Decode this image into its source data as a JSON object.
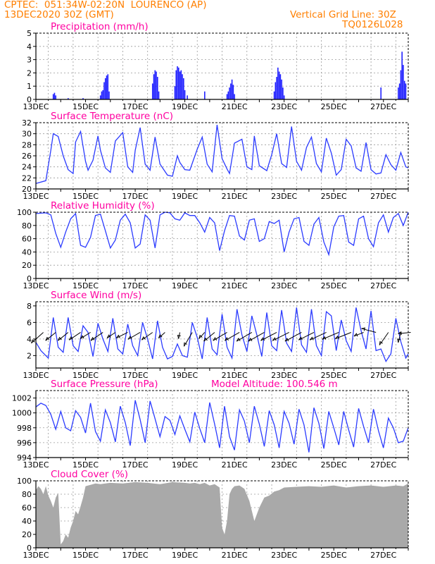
{
  "header": {
    "line1": "CPTEC:  051:34W-02:20N  LOURENCO (AP)",
    "line2": "13DEC2020 30Z (GMT)",
    "grid_note": "Vertical Grid Line: 30Z",
    "run_id": "TQ0126L028"
  },
  "colors": {
    "header": "#ff7f00",
    "title": "#ff00a0",
    "line": "#2b3bff",
    "bar": "#2020ff",
    "cloud": "#a9a9a9"
  },
  "chart_data": [
    {
      "id": "precip",
      "type": "bar",
      "title": "Precipitation (mm/h)",
      "ylim": [
        0,
        5
      ],
      "yticks": [
        0,
        1,
        2,
        3,
        4,
        5
      ],
      "x_start_day": 13,
      "x_end_day": 28,
      "xtick_labels": [
        "13DEC",
        "15DEC",
        "17DEC",
        "19DEC",
        "21DEC",
        "23DEC",
        "25DEC",
        "27DEC"
      ],
      "grid": true,
      "values": [
        [
          13.7,
          0.4
        ],
        [
          13.75,
          0.5
        ],
        [
          13.8,
          0.3
        ],
        [
          14.3,
          0.1
        ],
        [
          14.9,
          0.1
        ],
        [
          15.6,
          0.3
        ],
        [
          15.65,
          0.6
        ],
        [
          15.7,
          0.7
        ],
        [
          15.75,
          1.3
        ],
        [
          15.8,
          1.6
        ],
        [
          15.85,
          1.8
        ],
        [
          15.9,
          1.9
        ],
        [
          15.95,
          0.6
        ],
        [
          17.7,
          1.2
        ],
        [
          17.75,
          1.9
        ],
        [
          17.8,
          2.2
        ],
        [
          17.85,
          2.1
        ],
        [
          17.9,
          1.7
        ],
        [
          17.95,
          0.6
        ],
        [
          18.6,
          1.0
        ],
        [
          18.65,
          2.2
        ],
        [
          18.7,
          2.5
        ],
        [
          18.75,
          2.4
        ],
        [
          18.8,
          2.1
        ],
        [
          18.85,
          2.2
        ],
        [
          18.9,
          1.9
        ],
        [
          18.95,
          1.6
        ],
        [
          19.0,
          0.7
        ],
        [
          19.1,
          0.3
        ],
        [
          19.8,
          0.6
        ],
        [
          20.7,
          0.4
        ],
        [
          20.75,
          0.6
        ],
        [
          20.8,
          0.9
        ],
        [
          20.85,
          1.2
        ],
        [
          20.9,
          1.5
        ],
        [
          20.95,
          1.1
        ],
        [
          21.0,
          0.4
        ],
        [
          22.6,
          0.6
        ],
        [
          22.65,
          1.3
        ],
        [
          22.7,
          1.7
        ],
        [
          22.75,
          2.4
        ],
        [
          22.8,
          2.1
        ],
        [
          22.85,
          1.9
        ],
        [
          22.9,
          1.5
        ],
        [
          22.95,
          0.9
        ],
        [
          23.0,
          0.3
        ],
        [
          26.9,
          0.9
        ],
        [
          27.6,
          0.9
        ],
        [
          27.65,
          1.2
        ],
        [
          27.7,
          2.2
        ],
        [
          27.75,
          3.6
        ],
        [
          27.8,
          2.6
        ],
        [
          27.85,
          1.4
        ],
        [
          27.9,
          1.2
        ]
      ]
    },
    {
      "id": "temp",
      "type": "line",
      "title": "Surface Temperature (nC)",
      "ylim": [
        20,
        32
      ],
      "yticks": [
        20,
        22,
        24,
        26,
        28,
        30,
        32
      ],
      "x_start_day": 13,
      "x_end_day": 28,
      "xtick_labels": [
        "13DEC",
        "15DEC",
        "17DEC",
        "19DEC",
        "21DEC",
        "23DEC",
        "25DEC",
        "27DEC"
      ],
      "grid": true,
      "x": [
        13.0,
        13.4,
        13.6,
        13.7,
        13.9,
        14.1,
        14.3,
        14.5,
        14.6,
        14.8,
        15.0,
        15.1,
        15.3,
        15.5,
        15.6,
        15.8,
        16.0,
        16.2,
        16.5,
        16.7,
        16.9,
        17.0,
        17.2,
        17.4,
        17.6,
        17.8,
        18.0,
        18.3,
        18.5,
        18.7,
        18.8,
        19.0,
        19.2,
        19.5,
        19.7,
        19.9,
        20.1,
        20.3,
        20.5,
        20.7,
        20.8,
        21.0,
        21.3,
        21.5,
        21.7,
        21.8,
        22.0,
        22.3,
        22.5,
        22.7,
        22.9,
        23.1,
        23.3,
        23.5,
        23.7,
        23.9,
        24.1,
        24.3,
        24.5,
        24.7,
        24.9,
        25.1,
        25.3,
        25.5,
        25.7,
        25.9,
        26.1,
        26.3,
        26.5,
        26.7,
        26.9,
        27.1,
        27.3,
        27.5,
        27.7,
        27.9,
        28.0
      ],
      "values": [
        21.0,
        21.5,
        27.0,
        30.0,
        29.5,
        26.0,
        23.5,
        22.8,
        28.5,
        30.4,
        25.0,
        23.4,
        25.2,
        29.6,
        27.0,
        23.8,
        23.0,
        28.7,
        30.2,
        24.0,
        23.0,
        27.0,
        31.1,
        24.5,
        23.4,
        29.4,
        24.5,
        22.5,
        22.3,
        26.0,
        24.8,
        23.5,
        23.4,
        27.2,
        29.4,
        24.5,
        23.1,
        31.6,
        25.5,
        23.6,
        22.8,
        28.3,
        29.0,
        24.0,
        23.5,
        29.6,
        24.2,
        23.3,
        26.2,
        30.0,
        24.6,
        23.9,
        31.3,
        25.0,
        23.4,
        27.5,
        29.4,
        24.6,
        23.1,
        29.2,
        26.5,
        22.5,
        23.5,
        29.0,
        27.8,
        23.8,
        23.2,
        28.4,
        23.5,
        22.7,
        22.9,
        26.2,
        24.4,
        23.4,
        26.6,
        24.0,
        23.8
      ]
    },
    {
      "id": "rh",
      "type": "line",
      "title": "Relative Humidity (%)",
      "ylim": [
        0,
        100
      ],
      "yticks": [
        0,
        20,
        40,
        60,
        80,
        100
      ],
      "x_start_day": 13,
      "x_end_day": 28,
      "xtick_labels": [
        "13DEC",
        "15DEC",
        "17DEC",
        "19DEC",
        "21DEC",
        "23DEC",
        "25DEC",
        "27DEC"
      ],
      "grid": true,
      "x": [
        13.0,
        13.4,
        13.6,
        13.8,
        14.0,
        14.2,
        14.4,
        14.6,
        14.8,
        15.0,
        15.2,
        15.4,
        15.6,
        15.8,
        16.0,
        16.2,
        16.4,
        16.6,
        16.8,
        17.0,
        17.2,
        17.4,
        17.6,
        17.8,
        18.0,
        18.2,
        18.4,
        18.6,
        18.8,
        19.0,
        19.2,
        19.4,
        19.6,
        19.8,
        20.0,
        20.2,
        20.4,
        20.6,
        20.8,
        21.0,
        21.2,
        21.4,
        21.6,
        21.8,
        22.0,
        22.2,
        22.4,
        22.6,
        22.8,
        23.0,
        23.2,
        23.4,
        23.6,
        23.8,
        24.0,
        24.2,
        24.4,
        24.6,
        24.8,
        25.0,
        25.2,
        25.4,
        25.6,
        25.8,
        26.0,
        26.2,
        26.4,
        26.6,
        26.8,
        27.0,
        27.2,
        27.4,
        27.6,
        27.8,
        28.0
      ],
      "values": [
        98,
        99,
        96,
        68,
        47,
        70,
        90,
        98,
        50,
        47,
        62,
        95,
        97,
        72,
        46,
        58,
        88,
        97,
        84,
        46,
        52,
        96,
        88,
        46,
        96,
        100,
        99,
        90,
        88,
        99,
        95,
        95,
        84,
        70,
        92,
        84,
        42,
        72,
        95,
        94,
        64,
        58,
        88,
        90,
        56,
        60,
        86,
        83,
        88,
        40,
        70,
        90,
        92,
        56,
        50,
        82,
        92,
        55,
        36,
        78,
        94,
        95,
        55,
        50,
        90,
        94,
        60,
        48,
        84,
        96,
        70,
        92,
        98,
        80,
        100
      ]
    },
    {
      "id": "wind",
      "type": "line",
      "title": "Surface Wind (m/s)",
      "ylim": [
        0.5,
        8.5
      ],
      "yticks": [
        2,
        4,
        6,
        8
      ],
      "x_start_day": 13,
      "x_end_day": 28,
      "xtick_labels": [
        "13DEC",
        "15DEC",
        "17DEC",
        "19DEC",
        "21DEC",
        "23DEC",
        "25DEC",
        "27DEC"
      ],
      "grid": true,
      "x": [
        13.0,
        13.2,
        13.5,
        13.7,
        13.9,
        14.1,
        14.3,
        14.5,
        14.7,
        14.9,
        15.1,
        15.3,
        15.5,
        15.7,
        15.9,
        16.1,
        16.3,
        16.5,
        16.7,
        16.9,
        17.1,
        17.3,
        17.5,
        17.7,
        17.9,
        18.1,
        18.3,
        18.5,
        18.7,
        18.9,
        19.1,
        19.3,
        19.5,
        19.7,
        19.9,
        20.1,
        20.3,
        20.5,
        20.7,
        20.9,
        21.1,
        21.3,
        21.5,
        21.7,
        21.9,
        22.1,
        22.3,
        22.5,
        22.7,
        22.9,
        23.1,
        23.3,
        23.5,
        23.7,
        23.9,
        24.1,
        24.3,
        24.5,
        24.7,
        24.9,
        25.1,
        25.3,
        25.5,
        25.7,
        25.9,
        26.1,
        26.3,
        26.5,
        26.7,
        26.9,
        27.1,
        27.3,
        27.5,
        27.7,
        27.9,
        28.0
      ],
      "values": [
        3.6,
        2.6,
        1.7,
        6.6,
        3.0,
        2.4,
        6.6,
        3.2,
        2.5,
        5.6,
        4.8,
        1.9,
        5.9,
        4.0,
        2.5,
        6.5,
        2.8,
        2.2,
        5.8,
        3.2,
        2.0,
        6.0,
        4.0,
        1.6,
        6.2,
        3.0,
        1.6,
        1.9,
        3.4,
        2.0,
        1.8,
        6.0,
        4.2,
        1.6,
        6.6,
        2.8,
        2.1,
        7.0,
        3.0,
        1.7,
        7.6,
        4.5,
        2.5,
        6.8,
        4.5,
        1.9,
        7.2,
        3.2,
        2.6,
        7.5,
        3.5,
        2.5,
        7.8,
        3.3,
        2.4,
        7.6,
        3.2,
        2.0,
        7.3,
        6.8,
        2.6,
        6.3,
        3.8,
        2.5,
        7.8,
        5.0,
        2.8,
        7.4,
        2.6,
        2.8,
        1.3,
        2.2,
        6.5,
        3.7,
        1.7,
        2.2
      ],
      "barbs": [
        [
          13.3,
          4.8,
          -1.9,
          -1.7
        ],
        [
          13.8,
          4.8,
          -1.6,
          -1.3
        ],
        [
          14.3,
          4.8,
          -1.6,
          -1.3
        ],
        [
          14.8,
          4.8,
          -1.8,
          -1.2
        ],
        [
          15.2,
          4.8,
          -1.6,
          -1.0
        ],
        [
          15.7,
          4.8,
          -1.9,
          -1.3
        ],
        [
          16.2,
          4.8,
          -1.3,
          -0.9
        ],
        [
          16.7,
          4.8,
          -1.8,
          -0.9
        ],
        [
          17.2,
          4.8,
          -1.9,
          -1.1
        ],
        [
          17.7,
          4.8,
          -1.7,
          -1.2
        ],
        [
          18.2,
          4.8,
          -1.0,
          -0.9
        ],
        [
          18.8,
          4.8,
          -0.2,
          -1.0
        ],
        [
          19.3,
          4.8,
          -1.3,
          -2.2
        ],
        [
          19.8,
          4.8,
          -0.9,
          -1.0
        ],
        [
          20.2,
          4.8,
          -1.7,
          -1.4
        ],
        [
          20.7,
          4.8,
          -2.2,
          -1.3
        ],
        [
          21.2,
          4.8,
          -2.3,
          -1.3
        ],
        [
          21.7,
          4.8,
          -2.4,
          -1.4
        ],
        [
          22.2,
          4.8,
          -2.5,
          -1.4
        ],
        [
          22.7,
          4.8,
          -2.5,
          -1.3
        ],
        [
          23.2,
          4.8,
          -2.6,
          -1.3
        ],
        [
          23.7,
          4.8,
          -2.6,
          -1.4
        ],
        [
          24.2,
          4.8,
          -2.4,
          -1.2
        ],
        [
          24.7,
          4.8,
          -2.6,
          -1.2
        ],
        [
          25.2,
          4.8,
          -2.6,
          -1.1
        ],
        [
          25.7,
          4.8,
          -2.5,
          -1.0
        ],
        [
          26.2,
          4.8,
          -1.5,
          -0.6
        ],
        [
          26.7,
          4.8,
          -2.3,
          0.6
        ],
        [
          27.2,
          4.8,
          -1.4,
          -2.0
        ],
        [
          27.7,
          4.8,
          -0.4,
          -1.6
        ],
        [
          28.1,
          4.8,
          -2.0,
          -0.2
        ]
      ]
    },
    {
      "id": "pressure",
      "type": "line",
      "title": "Surface Pressure (hPa)",
      "annotation": "Model Altitude: 100.546 m",
      "ylim": [
        994,
        1003
      ],
      "yticks": [
        994,
        996,
        998,
        1000,
        1002
      ],
      "x_start_day": 13,
      "x_end_day": 28,
      "xtick_labels": [
        "13DEC",
        "15DEC",
        "17DEC",
        "19DEC",
        "21DEC",
        "23DEC",
        "25DEC",
        "27DEC"
      ],
      "grid": true,
      "x": [
        13.0,
        13.2,
        13.4,
        13.6,
        13.8,
        14.0,
        14.2,
        14.4,
        14.6,
        14.8,
        15.0,
        15.2,
        15.4,
        15.6,
        15.8,
        16.0,
        16.2,
        16.4,
        16.6,
        16.8,
        17.0,
        17.2,
        17.4,
        17.6,
        17.8,
        18.0,
        18.2,
        18.4,
        18.6,
        18.8,
        19.0,
        19.2,
        19.4,
        19.6,
        19.8,
        20.0,
        20.2,
        20.4,
        20.6,
        20.8,
        21.0,
        21.2,
        21.4,
        21.6,
        21.8,
        22.0,
        22.2,
        22.4,
        22.6,
        22.8,
        23.0,
        23.2,
        23.4,
        23.6,
        23.8,
        24.0,
        24.2,
        24.4,
        24.6,
        24.8,
        25.0,
        25.2,
        25.4,
        25.6,
        25.8,
        26.0,
        26.2,
        26.4,
        26.6,
        26.8,
        27.0,
        27.2,
        27.4,
        27.6,
        27.8,
        28.0
      ],
      "values": [
        1000.8,
        1001.3,
        1001.0,
        999.8,
        997.8,
        1000.2,
        998.0,
        997.6,
        1000.3,
        999.4,
        997.3,
        1001.3,
        997.5,
        996.2,
        1000.4,
        998.7,
        996.1,
        1000.9,
        998.7,
        995.6,
        1001.7,
        999.1,
        996.0,
        1001.6,
        999.2,
        996.8,
        999.5,
        999.0,
        997.1,
        999.6,
        997.8,
        996.1,
        1000.1,
        997.9,
        996.0,
        1001.4,
        998.5,
        995.3,
        1000.9,
        996.8,
        995.0,
        1000.4,
        998.9,
        996.0,
        1000.9,
        998.5,
        995.5,
        1000.3,
        998.4,
        995.3,
        1000.2,
        998.6,
        995.8,
        1000.5,
        998.4,
        994.7,
        1000.7,
        998.6,
        995.2,
        1000.2,
        998.0,
        995.7,
        1000.2,
        997.7,
        995.4,
        1000.6,
        998.2,
        996.0,
        1000.5,
        997.6,
        995.3,
        999.3,
        998.0,
        996.0,
        996.2,
        998.0
      ]
    },
    {
      "id": "cloud",
      "type": "area",
      "title": "Cloud Cover (%)",
      "ylim": [
        0,
        100
      ],
      "yticks": [
        0,
        20,
        40,
        60,
        80,
        100
      ],
      "x_start_day": 13,
      "x_end_day": 28,
      "xtick_labels": [
        "13DEC",
        "15DEC",
        "17DEC",
        "19DEC",
        "21DEC",
        "23DEC",
        "25DEC",
        "27DEC"
      ],
      "grid": true,
      "x": [
        13.0,
        13.1,
        13.2,
        13.3,
        13.4,
        13.5,
        13.6,
        13.7,
        13.8,
        13.9,
        14.0,
        14.1,
        14.2,
        14.3,
        14.4,
        14.5,
        14.6,
        14.7,
        14.8,
        14.9,
        15.0,
        15.2,
        15.4,
        15.6,
        15.8,
        16.0,
        16.5,
        17.0,
        17.5,
        18.0,
        18.5,
        19.0,
        19.2,
        19.4,
        19.6,
        19.8,
        20.0,
        20.2,
        20.4,
        20.5,
        20.6,
        20.7,
        20.8,
        20.9,
        21.0,
        21.2,
        21.4,
        21.6,
        21.8,
        22.0,
        22.2,
        22.4,
        22.6,
        22.8,
        23.0,
        23.5,
        24.0,
        24.5,
        25.0,
        25.5,
        26.0,
        26.5,
        27.0,
        27.5,
        27.8,
        28.0
      ],
      "values": [
        86,
        92,
        88,
        80,
        92,
        78,
        70,
        60,
        75,
        82,
        5,
        10,
        20,
        15,
        30,
        40,
        55,
        50,
        62,
        75,
        92,
        94,
        96,
        95,
        96,
        97,
        96,
        98,
        97,
        95,
        98,
        97,
        96,
        97,
        95,
        97,
        93,
        95,
        90,
        30,
        20,
        40,
        80,
        88,
        92,
        93,
        88,
        70,
        40,
        60,
        75,
        78,
        84,
        86,
        90,
        91,
        92,
        91,
        93,
        90,
        92,
        93,
        91,
        93,
        92,
        96
      ]
    }
  ]
}
